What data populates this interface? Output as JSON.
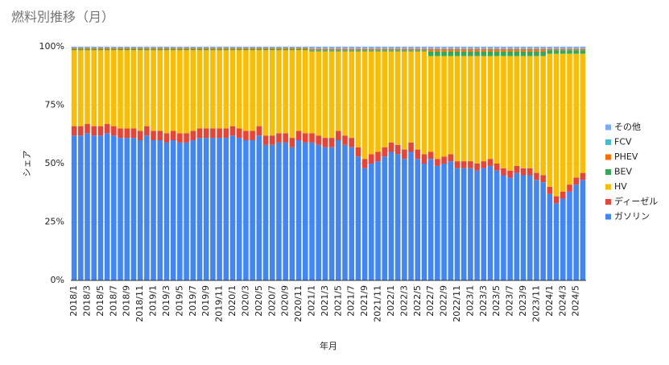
{
  "chart_data": {
    "type": "stacked_bar",
    "title": "燃料別推移（月）",
    "x_label": "年月",
    "y_label": "シェア",
    "categories": [
      "2018/1",
      null,
      "2018/3",
      null,
      "2018/5",
      null,
      "2018/7",
      null,
      "2018/9",
      null,
      "2018/11",
      null,
      "2019/1",
      null,
      "2019/3",
      null,
      "2019/5",
      null,
      "2019/7",
      null,
      "2019/9",
      null,
      "2019/11",
      null,
      "2020/1",
      null,
      "2020/3",
      null,
      "2020/5",
      null,
      "2020/7",
      null,
      "2020/9",
      null,
      "2020/11",
      null,
      "2021/1",
      null,
      "2021/3",
      null,
      "2021/5",
      null,
      "2021/7",
      null,
      "2021/9",
      null,
      "2021/11",
      null,
      "2022/1",
      null,
      "2022/3",
      null,
      "2022/5",
      null,
      "2022/7",
      null,
      "2022/9",
      null,
      "2022/11",
      null,
      "2023/1",
      null,
      "2023/3",
      null,
      "2023/5",
      null,
      "2023/7",
      null,
      "2023/9",
      null,
      "2023/11",
      null,
      "2024/1",
      null,
      "2024/3",
      null,
      "2024/5",
      null
    ],
    "series": [
      {
        "name": "ガソリン",
        "color": "#4285f4",
        "values": [
          62,
          62,
          63,
          62,
          62,
          63,
          62,
          61,
          61,
          61,
          60,
          62,
          60,
          60,
          59,
          60,
          59,
          59,
          60,
          61,
          61,
          61,
          61,
          61,
          62,
          61,
          60,
          60,
          62,
          58,
          58,
          59,
          59,
          57,
          60,
          59,
          59,
          58,
          57,
          57,
          60,
          58,
          57,
          53,
          48,
          50,
          51,
          53,
          55,
          54,
          52,
          55,
          52,
          50,
          52,
          49,
          50,
          51,
          48,
          48,
          48,
          47,
          48,
          49,
          47,
          45,
          44,
          46,
          45,
          45,
          43,
          42,
          37,
          33,
          35,
          38,
          41,
          43
        ]
      },
      {
        "name": "ディーゼル",
        "color": "#ea4335",
        "values": [
          4,
          4,
          4,
          4,
          4,
          4,
          4,
          4,
          4,
          4,
          4,
          4,
          4,
          4,
          4,
          4,
          4,
          4,
          4,
          4,
          4,
          4,
          4,
          4,
          4,
          4,
          4,
          4,
          4,
          4,
          4,
          4,
          4,
          4,
          4,
          4,
          4,
          4,
          4,
          4,
          4,
          4,
          4,
          4,
          4,
          4,
          4,
          4,
          4,
          4,
          4,
          4,
          4,
          4,
          3,
          3,
          3,
          3,
          3,
          3,
          3,
          3,
          3,
          3,
          3,
          3,
          3,
          3,
          3,
          3,
          3,
          3,
          3,
          3,
          3,
          3,
          3,
          3
        ]
      },
      {
        "name": "HV",
        "color": "#fbbc04",
        "values": [
          32.5,
          32.5,
          31.5,
          32.5,
          32.5,
          31.5,
          32.5,
          33.5,
          33.5,
          33.5,
          34.5,
          32.5,
          34.5,
          34.5,
          35.5,
          34.5,
          35.5,
          35.5,
          34.5,
          33.5,
          33.5,
          33.5,
          33.5,
          33.5,
          32.5,
          33.5,
          34.5,
          34.5,
          32.5,
          36.5,
          36.5,
          35.5,
          35.5,
          37.5,
          34.5,
          35.5,
          35,
          36,
          37,
          37,
          34,
          36,
          37,
          41,
          46,
          44,
          43,
          41,
          39,
          40,
          42,
          39,
          42,
          44,
          41,
          44,
          43,
          42,
          45,
          45,
          45,
          46,
          45,
          44,
          46,
          48,
          49,
          47,
          48,
          48,
          50,
          51,
          57,
          61,
          59,
          56,
          53,
          51
        ]
      },
      {
        "name": "BEV",
        "color": "#34a853",
        "values": [
          0.5,
          0.5,
          0.5,
          0.5,
          0.5,
          0.5,
          0.5,
          0.5,
          0.5,
          0.5,
          0.5,
          0.5,
          0.5,
          0.5,
          0.5,
          0.5,
          0.5,
          0.5,
          0.5,
          0.5,
          0.5,
          0.5,
          0.5,
          0.5,
          0.5,
          0.5,
          0.5,
          0.5,
          0.5,
          0.5,
          0.5,
          0.5,
          0.5,
          0.5,
          0.5,
          0.5,
          0.5,
          0.5,
          0.5,
          0.5,
          0.5,
          0.5,
          0.5,
          0.5,
          0.5,
          0.5,
          0.5,
          0.5,
          0.5,
          0.5,
          0.5,
          0.5,
          0.5,
          0.5,
          2,
          2,
          2,
          2,
          2,
          2,
          2,
          2,
          2,
          2,
          2,
          2,
          2,
          2,
          2,
          2,
          2,
          2,
          1.5,
          1.5,
          1.5,
          1.5,
          1.5,
          1.5
        ]
      },
      {
        "name": "PHEV",
        "color": "#ff6d01",
        "values": [
          0.5,
          0.5,
          0.5,
          0.5,
          0.5,
          0.5,
          0.5,
          0.5,
          0.5,
          0.5,
          0.5,
          0.5,
          0.5,
          0.5,
          0.5,
          0.5,
          0.5,
          0.5,
          0.5,
          0.5,
          0.5,
          0.5,
          0.5,
          0.5,
          0.5,
          0.5,
          0.5,
          0.5,
          0.5,
          0.5,
          0.5,
          0.5,
          0.5,
          0.5,
          0.5,
          0.5,
          0.5,
          0.5,
          0.5,
          0.5,
          0.5,
          0.5,
          0.5,
          0.5,
          0.5,
          0.5,
          0.5,
          0.5,
          0.5,
          0.5,
          0.5,
          0.5,
          0.5,
          0.5,
          1,
          1,
          1,
          1,
          1,
          1,
          1,
          1,
          1,
          1,
          1,
          1,
          1,
          1,
          1,
          1,
          1,
          1,
          0.5,
          0.5,
          0.5,
          0.5,
          0.5,
          0.5
        ]
      },
      {
        "name": "FCV",
        "color": "#46bdc6",
        "values": [
          0,
          0,
          0,
          0,
          0,
          0,
          0,
          0,
          0,
          0,
          0,
          0,
          0,
          0,
          0,
          0,
          0,
          0,
          0,
          0,
          0,
          0,
          0,
          0,
          0,
          0,
          0,
          0,
          0,
          0,
          0,
          0,
          0,
          0,
          0,
          0,
          0,
          0,
          0,
          0,
          0,
          0,
          0,
          0,
          0,
          0,
          0,
          0,
          0,
          0,
          0,
          0,
          0,
          0,
          0,
          0,
          0,
          0,
          0,
          0,
          0,
          0,
          0,
          0,
          0,
          0,
          0,
          0,
          0,
          0,
          0,
          0,
          0,
          0,
          0,
          0,
          0,
          0
        ]
      },
      {
        "name": "その他",
        "color": "#7baaf7",
        "values": [
          0.5,
          0.5,
          0.5,
          0.5,
          0.5,
          0.5,
          0.5,
          0.5,
          0.5,
          0.5,
          0.5,
          0.5,
          0.5,
          0.5,
          0.5,
          0.5,
          0.5,
          0.5,
          0.5,
          0.5,
          0.5,
          0.5,
          0.5,
          0.5,
          0.5,
          0.5,
          0.5,
          0.5,
          0.5,
          0.5,
          0.5,
          0.5,
          0.5,
          0.5,
          0.5,
          0.5,
          1,
          1,
          1,
          1,
          1,
          1,
          1,
          1,
          1,
          1,
          1,
          1,
          1,
          1,
          1,
          1,
          1,
          1,
          1,
          1,
          1,
          1,
          1,
          1,
          1,
          1,
          1,
          1,
          1,
          1,
          1,
          1,
          1,
          1,
          1,
          1,
          1,
          1,
          1,
          1,
          1,
          1
        ]
      }
    ],
    "ylim": [
      0,
      100
    ],
    "yticks": [
      {
        "value": 0,
        "label": "0%"
      },
      {
        "value": 25,
        "label": "25%"
      },
      {
        "value": 50,
        "label": "50%"
      },
      {
        "value": 75,
        "label": "75%"
      },
      {
        "value": 100,
        "label": "100%"
      }
    ],
    "grid": true,
    "legend": "right"
  }
}
